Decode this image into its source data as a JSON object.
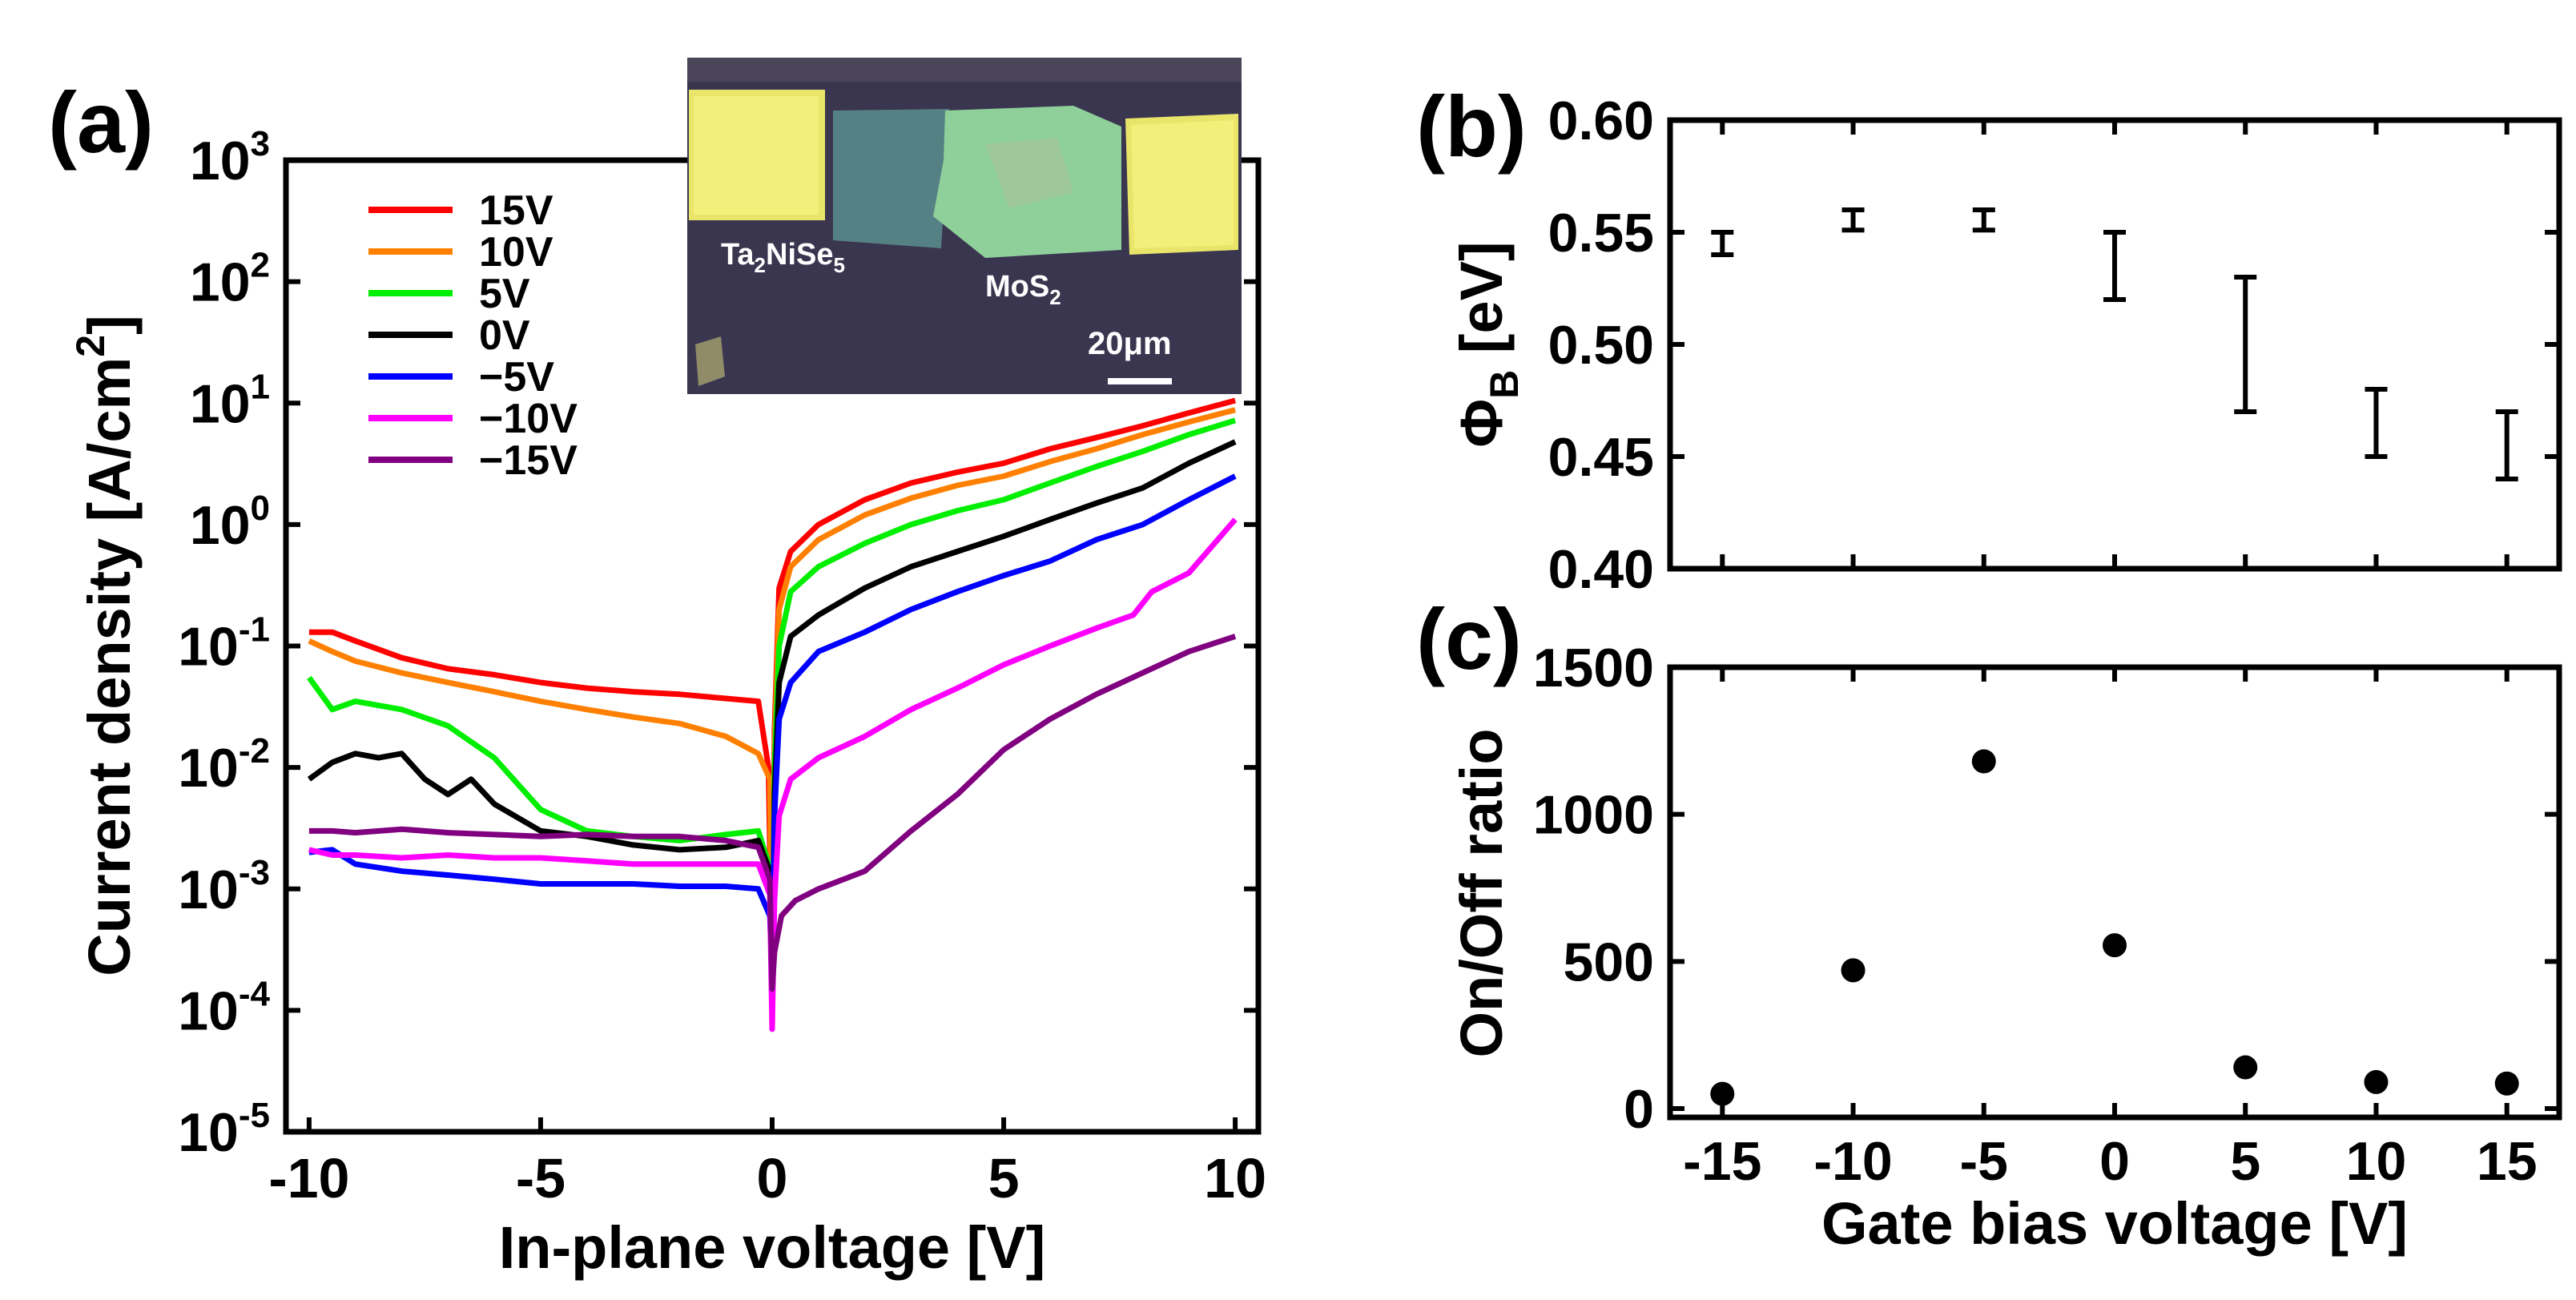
{
  "chart_data": [
    {
      "panel": "(a)",
      "type": "line",
      "xlabel": "In-plane voltage [V]",
      "ylabel": "Current density [A/cm",
      "ylabel_sup": "2",
      "ylabel_end": "]",
      "yscale": "log",
      "xlim": [
        -10.5,
        10.5
      ],
      "ylim_exp": [
        -5,
        3
      ],
      "x_ticks": [
        "-10",
        "-5",
        "0",
        "5",
        "10"
      ],
      "x_tick_values": [
        -10,
        -5,
        0,
        5,
        10
      ],
      "y_ticks": [
        {
          "exp": 3,
          "base": "10",
          "sup": "3"
        },
        {
          "exp": 2,
          "base": "10",
          "sup": "2"
        },
        {
          "exp": 1,
          "base": "10",
          "sup": "1"
        },
        {
          "exp": 0,
          "base": "10",
          "sup": "0"
        },
        {
          "exp": -1,
          "base": "10",
          "sup": "-1"
        },
        {
          "exp": -2,
          "base": "10",
          "sup": "-2"
        },
        {
          "exp": -3,
          "base": "10",
          "sup": "-3"
        },
        {
          "exp": -4,
          "base": "10",
          "sup": "-4"
        },
        {
          "exp": -5,
          "base": "10",
          "sup": "-5"
        }
      ],
      "series": [
        {
          "name": "15V",
          "color": "#ff0000",
          "points": [
            [
              -10,
              0.13
            ],
            [
              -9.5,
              0.13
            ],
            [
              -9,
              0.11
            ],
            [
              -8,
              0.08
            ],
            [
              -7,
              0.065
            ],
            [
              -6,
              0.058
            ],
            [
              -5,
              0.05
            ],
            [
              -4,
              0.045
            ],
            [
              -3,
              0.042
            ],
            [
              -2,
              0.04
            ],
            [
              -1,
              0.037
            ],
            [
              -0.3,
              0.035
            ],
            [
              -0.08,
              0.01
            ],
            [
              0,
              0.0002
            ],
            [
              0.05,
              0.02
            ],
            [
              0.15,
              0.3
            ],
            [
              0.4,
              0.6
            ],
            [
              1,
              1.0
            ],
            [
              2,
              1.6
            ],
            [
              3,
              2.2
            ],
            [
              4,
              2.7
            ],
            [
              5,
              3.2
            ],
            [
              6,
              4.2
            ],
            [
              7,
              5.2
            ],
            [
              8,
              6.5
            ],
            [
              9,
              8.3
            ],
            [
              10,
              10.5
            ]
          ]
        },
        {
          "name": "10V",
          "color": "#ff8000",
          "points": [
            [
              -10,
              0.11
            ],
            [
              -9.5,
              0.09
            ],
            [
              -9,
              0.075
            ],
            [
              -8,
              0.06
            ],
            [
              -7,
              0.05
            ],
            [
              -6,
              0.042
            ],
            [
              -5,
              0.035
            ],
            [
              -4,
              0.03
            ],
            [
              -3,
              0.026
            ],
            [
              -2,
              0.023
            ],
            [
              -1,
              0.018
            ],
            [
              -0.3,
              0.013
            ],
            [
              -0.05,
              0.008
            ],
            [
              0,
              0.0002
            ],
            [
              0.05,
              0.015
            ],
            [
              0.15,
              0.2
            ],
            [
              0.4,
              0.45
            ],
            [
              1,
              0.75
            ],
            [
              2,
              1.2
            ],
            [
              3,
              1.65
            ],
            [
              4,
              2.1
            ],
            [
              5,
              2.5
            ],
            [
              6,
              3.3
            ],
            [
              7,
              4.2
            ],
            [
              8,
              5.5
            ],
            [
              9,
              7
            ],
            [
              10,
              8.8
            ]
          ]
        },
        {
          "name": "5V",
          "color": "#00ee00",
          "points": [
            [
              -10,
              0.055
            ],
            [
              -9.5,
              0.03
            ],
            [
              -9,
              0.035
            ],
            [
              -8,
              0.03
            ],
            [
              -7,
              0.022
            ],
            [
              -6,
              0.012
            ],
            [
              -5,
              0.0045
            ],
            [
              -4,
              0.003
            ],
            [
              -3,
              0.0027
            ],
            [
              -2,
              0.0025
            ],
            [
              -1,
              0.0028
            ],
            [
              -0.3,
              0.003
            ],
            [
              -0.05,
              0.0015
            ],
            [
              0,
              0.0001
            ],
            [
              0.05,
              0.01
            ],
            [
              0.15,
              0.1
            ],
            [
              0.4,
              0.28
            ],
            [
              1,
              0.45
            ],
            [
              2,
              0.7
            ],
            [
              3,
              1.0
            ],
            [
              4,
              1.3
            ],
            [
              5,
              1.6
            ],
            [
              6,
              2.2
            ],
            [
              7,
              3
            ],
            [
              8,
              4
            ],
            [
              9,
              5.5
            ],
            [
              10,
              7.2
            ]
          ]
        },
        {
          "name": "0V",
          "color": "#000000",
          "points": [
            [
              -10,
              0.008
            ],
            [
              -9.5,
              0.011
            ],
            [
              -9,
              0.013
            ],
            [
              -8.5,
              0.012
            ],
            [
              -8,
              0.013
            ],
            [
              -7.5,
              0.008
            ],
            [
              -7,
              0.006
            ],
            [
              -6.5,
              0.008
            ],
            [
              -6,
              0.005
            ],
            [
              -5,
              0.003
            ],
            [
              -4,
              0.0027
            ],
            [
              -3,
              0.0023
            ],
            [
              -2,
              0.0021
            ],
            [
              -1,
              0.0022
            ],
            [
              -0.3,
              0.0025
            ],
            [
              -0.05,
              0.0014
            ],
            [
              0,
              0.0001
            ],
            [
              0.05,
              0.006
            ],
            [
              0.15,
              0.05
            ],
            [
              0.4,
              0.12
            ],
            [
              1,
              0.18
            ],
            [
              2,
              0.3
            ],
            [
              3,
              0.45
            ],
            [
              4,
              0.6
            ],
            [
              5,
              0.8
            ],
            [
              6,
              1.1
            ],
            [
              7,
              1.5
            ],
            [
              8,
              2.0
            ],
            [
              9,
              3.2
            ],
            [
              10,
              4.8
            ]
          ]
        },
        {
          "name": "−5V",
          "color": "#0000ff",
          "points": [
            [
              -10,
              0.002
            ],
            [
              -9.5,
              0.0021
            ],
            [
              -9,
              0.0016
            ],
            [
              -8,
              0.0014
            ],
            [
              -7,
              0.0013
            ],
            [
              -6,
              0.0012
            ],
            [
              -5,
              0.0011
            ],
            [
              -4,
              0.0011
            ],
            [
              -3,
              0.0011
            ],
            [
              -2,
              0.00105
            ],
            [
              -1,
              0.00105
            ],
            [
              -0.3,
              0.001
            ],
            [
              -0.05,
              0.0006
            ],
            [
              0,
              0.0002
            ],
            [
              0.05,
              0.004
            ],
            [
              0.15,
              0.025
            ],
            [
              0.4,
              0.05
            ],
            [
              1,
              0.09
            ],
            [
              2,
              0.13
            ],
            [
              3,
              0.2
            ],
            [
              4,
              0.28
            ],
            [
              5,
              0.38
            ],
            [
              6,
              0.5
            ],
            [
              7,
              0.75
            ],
            [
              8,
              1.0
            ],
            [
              9,
              1.6
            ],
            [
              10,
              2.5
            ]
          ]
        },
        {
          "name": "−10V",
          "color": "#ff00ff",
          "points": [
            [
              -10,
              0.0021
            ],
            [
              -9.5,
              0.0019
            ],
            [
              -9,
              0.0019
            ],
            [
              -8,
              0.0018
            ],
            [
              -7,
              0.0019
            ],
            [
              -6,
              0.0018
            ],
            [
              -5,
              0.0018
            ],
            [
              -4,
              0.0017
            ],
            [
              -3,
              0.0016
            ],
            [
              -2,
              0.0016
            ],
            [
              -1,
              0.0016
            ],
            [
              -0.3,
              0.0016
            ],
            [
              -0.05,
              0.0009
            ],
            [
              0,
              7e-05
            ],
            [
              0.05,
              0.0008
            ],
            [
              0.15,
              0.004
            ],
            [
              0.4,
              0.008
            ],
            [
              1,
              0.012
            ],
            [
              2,
              0.018
            ],
            [
              3,
              0.03
            ],
            [
              4,
              0.045
            ],
            [
              5,
              0.07
            ],
            [
              6,
              0.1
            ],
            [
              7,
              0.14
            ],
            [
              7.8,
              0.18
            ],
            [
              8.2,
              0.28
            ],
            [
              9,
              0.4
            ],
            [
              10,
              1.1
            ]
          ]
        },
        {
          "name": "−15V",
          "color": "#800080",
          "points": [
            [
              -10,
              0.003
            ],
            [
              -9.5,
              0.003
            ],
            [
              -9,
              0.0029
            ],
            [
              -8,
              0.0031
            ],
            [
              -7,
              0.0029
            ],
            [
              -6,
              0.0028
            ],
            [
              -5,
              0.0027
            ],
            [
              -4,
              0.0028
            ],
            [
              -3,
              0.0027
            ],
            [
              -2,
              0.0027
            ],
            [
              -1,
              0.0025
            ],
            [
              -0.3,
              0.0022
            ],
            [
              -0.05,
              0.0012
            ],
            [
              0,
              0.00015
            ],
            [
              0.05,
              0.0003
            ],
            [
              0.2,
              0.0006
            ],
            [
              0.5,
              0.0008
            ],
            [
              1,
              0.001
            ],
            [
              2,
              0.0014
            ],
            [
              3,
              0.003
            ],
            [
              4,
              0.006
            ],
            [
              5,
              0.014
            ],
            [
              6,
              0.025
            ],
            [
              7,
              0.04
            ],
            [
              8,
              0.06
            ],
            [
              9,
              0.09
            ],
            [
              10,
              0.12
            ]
          ]
        }
      ],
      "inset": {
        "labels": [
          "Ta",
          "2",
          "NiSe",
          "5",
          "MoS",
          "2"
        ],
        "scale_bar": "20μm"
      }
    },
    {
      "panel": "(b)",
      "type": "errorbar",
      "ylabel_symbol": "Φ",
      "ylabel_sub": "B",
      "ylabel_unit": "[eV]",
      "xlim": [
        -17,
        17
      ],
      "ylim": [
        0.4,
        0.6
      ],
      "y_ticks": [
        "0.40",
        "0.45",
        "0.50",
        "0.55",
        "0.60"
      ],
      "y_tick_values": [
        0.4,
        0.45,
        0.5,
        0.55,
        0.6
      ],
      "x": [
        -15,
        -10,
        -5,
        0,
        5,
        10,
        15
      ],
      "y_low": [
        0.54,
        0.551,
        0.551,
        0.52,
        0.47,
        0.45,
        0.44
      ],
      "y_high": [
        0.55,
        0.56,
        0.56,
        0.55,
        0.53,
        0.48,
        0.47
      ]
    },
    {
      "panel": "(c)",
      "type": "scatter",
      "xlabel": "Gate bias voltage [V]",
      "ylabel": "On/Off ratio",
      "xlim": [
        -17,
        17
      ],
      "ylim": [
        -30,
        1500
      ],
      "x_ticks": [
        "-15",
        "-10",
        "-5",
        "0",
        "5",
        "10",
        "15"
      ],
      "x_tick_values": [
        -15,
        -10,
        -5,
        0,
        5,
        10,
        15
      ],
      "y_ticks": [
        "0",
        "500",
        "1000",
        "1500"
      ],
      "y_tick_values": [
        0,
        500,
        1000,
        1500
      ],
      "x": [
        -15,
        -10,
        -5,
        0,
        5,
        10,
        15
      ],
      "values": [
        50,
        470,
        1180,
        555,
        140,
        90,
        85
      ]
    }
  ]
}
